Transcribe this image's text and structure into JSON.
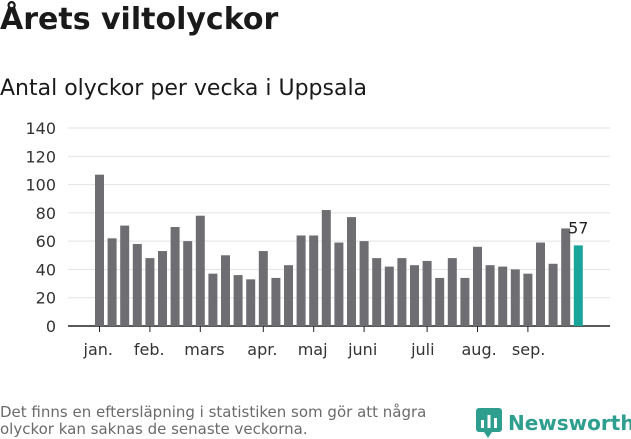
{
  "title": "Årets viltolyckor",
  "footnote": "Det finns en eftersläpning i statistiken som gör att några olyckor kan saknas de senaste veckorna.",
  "brand": {
    "name": "Newsworthy",
    "logo_icon": "newsworthy-logo-icon",
    "color": "#2e9e8f"
  },
  "chart_data": {
    "type": "bar",
    "title": "Antal olyckor per vecka i Uppsala",
    "xlabel": "",
    "ylabel": "",
    "ylim": [
      0,
      140
    ],
    "yticks": [
      0,
      20,
      40,
      60,
      80,
      100,
      120,
      140
    ],
    "grid": true,
    "month_labels": [
      {
        "label": "jan.",
        "week_index": 0
      },
      {
        "label": "feb.",
        "week_index": 4
      },
      {
        "label": "mars",
        "week_index": 8
      },
      {
        "label": "apr.",
        "week_index": 13
      },
      {
        "label": "maj",
        "week_index": 17
      },
      {
        "label": "juni",
        "week_index": 21
      },
      {
        "label": "juli",
        "week_index": 26
      },
      {
        "label": "aug.",
        "week_index": 30
      },
      {
        "label": "sep.",
        "week_index": 34
      }
    ],
    "values": [
      107,
      62,
      71,
      58,
      48,
      53,
      70,
      60,
      78,
      37,
      50,
      36,
      33,
      53,
      34,
      43,
      64,
      64,
      82,
      59,
      77,
      60,
      48,
      42,
      48,
      43,
      46,
      34,
      48,
      34,
      56,
      43,
      42,
      40,
      37,
      59,
      44,
      69,
      57
    ],
    "bar_color": "#6e6e72",
    "highlight_index": 38,
    "highlight_color": "#1aa59a",
    "highlight_label": "57"
  }
}
